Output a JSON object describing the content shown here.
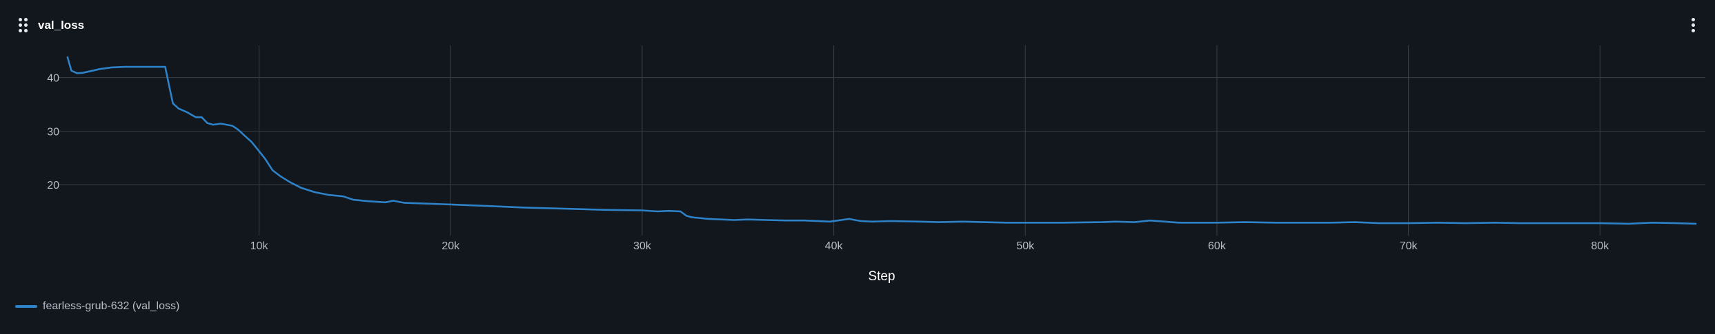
{
  "panel": {
    "title": "val_loss",
    "drag_icon": "drag-handle-icon",
    "menu_icon": "more-vertical-icon"
  },
  "colors": {
    "background": "#12161d",
    "grid": "#3a3f47",
    "series": "#2e82c7"
  },
  "chart_data": {
    "type": "line",
    "title": "val_loss",
    "xlabel": "Step",
    "ylabel": "",
    "xlim": [
      -500,
      85500
    ],
    "ylim": [
      10.5,
      46
    ],
    "x_ticks": [
      10000,
      20000,
      30000,
      40000,
      50000,
      60000,
      70000,
      80000
    ],
    "x_tick_labels": [
      "10k",
      "20k",
      "30k",
      "40k",
      "50k",
      "60k",
      "70k",
      "80k"
    ],
    "y_ticks": [
      20,
      30,
      40
    ],
    "y_tick_labels": [
      "20",
      "30",
      "40"
    ],
    "grid": true,
    "legend_position": "bottom-left",
    "series": [
      {
        "name": "fearless-grub-632 (val_loss)",
        "color": "#2e82c7",
        "x": [
          0,
          200,
          500,
          800,
          1200,
          1700,
          2300,
          3000,
          3800,
          4600,
          5100,
          5300,
          5500,
          5800,
          6200,
          6700,
          7000,
          7300,
          7600,
          8000,
          8600,
          8900,
          9200,
          9600,
          9900,
          10300,
          10700,
          11100,
          11600,
          12200,
          12900,
          13600,
          14400,
          14900,
          15700,
          16600,
          17000,
          17600,
          18500,
          20000,
          22000,
          24000,
          26000,
          28000,
          30000,
          30800,
          31400,
          32000,
          32300,
          32600,
          33500,
          34800,
          35500,
          36500,
          37500,
          38500,
          39800,
          40800,
          41400,
          42000,
          43000,
          44500,
          45500,
          46700,
          47800,
          49000,
          50000,
          52000,
          54000,
          54700,
          55700,
          56500,
          58000,
          60000,
          61500,
          63000,
          64500,
          66000,
          67200,
          68500,
          70000,
          71500,
          73000,
          74500,
          75800,
          77000,
          78500,
          80000,
          81500,
          82700,
          84000,
          85000
        ],
        "y": [
          43.8,
          41.3,
          40.8,
          40.9,
          41.2,
          41.6,
          41.9,
          42.0,
          42.0,
          42.0,
          42.0,
          38.5,
          35.2,
          34.2,
          33.6,
          32.6,
          32.6,
          31.5,
          31.2,
          31.4,
          31.0,
          30.3,
          29.3,
          28.0,
          26.7,
          24.9,
          22.7,
          21.6,
          20.5,
          19.4,
          18.6,
          18.1,
          17.8,
          17.2,
          16.9,
          16.7,
          17.0,
          16.6,
          16.5,
          16.3,
          16.0,
          15.7,
          15.5,
          15.3,
          15.2,
          15.0,
          15.1,
          15.0,
          14.2,
          13.9,
          13.6,
          13.4,
          13.5,
          13.4,
          13.3,
          13.3,
          13.1,
          13.6,
          13.2,
          13.1,
          13.2,
          13.1,
          13.0,
          13.1,
          13.0,
          12.9,
          12.9,
          12.9,
          13.0,
          13.1,
          13.0,
          13.3,
          12.9,
          12.9,
          13.0,
          12.9,
          12.9,
          12.9,
          13.0,
          12.8,
          12.8,
          12.9,
          12.8,
          12.9,
          12.8,
          12.8,
          12.8,
          12.8,
          12.7,
          12.9,
          12.8,
          12.7
        ]
      }
    ]
  }
}
